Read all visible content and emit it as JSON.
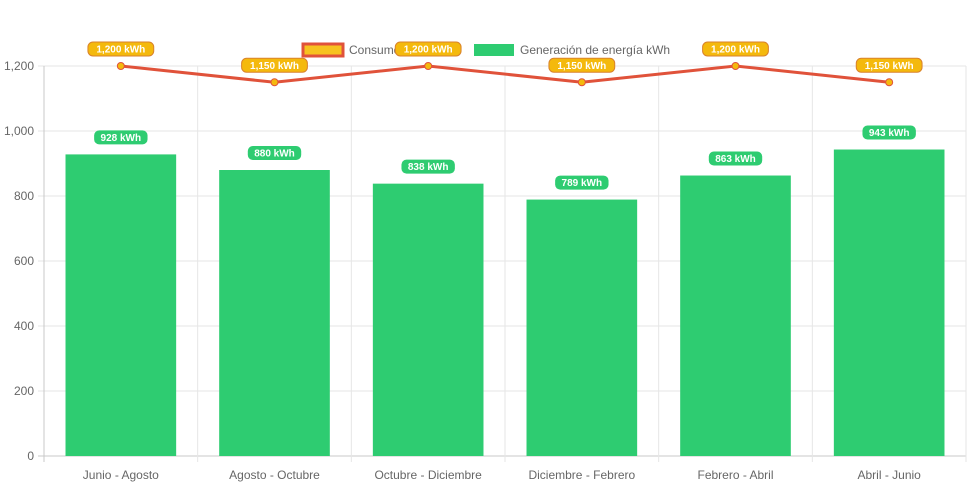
{
  "chart_data": {
    "type": "bar",
    "categories": [
      "Junio - Agosto",
      "Agosto - Octubre",
      "Octubre - Diciembre",
      "Diciembre - Febrero",
      "Febrero - Abril",
      "Abril - Junio"
    ],
    "series": [
      {
        "name": "Consumo kWh",
        "type": "line",
        "values": [
          1200,
          1150,
          1200,
          1150,
          1200,
          1150
        ],
        "labels": [
          "1,200 kWh",
          "1,150 kWh",
          "1,200 kWh",
          "1,150 kWh",
          "1,200 kWh",
          "1,150 kWh"
        ],
        "color": "#e0523a",
        "legend_fill": "#f7c21e",
        "label_bg": "#f4b90d",
        "label_border": "#d9822b"
      },
      {
        "name": "Generación de energía kWh",
        "type": "bar",
        "values": [
          928,
          880,
          838,
          789,
          863,
          943
        ],
        "labels": [
          "928 kWh",
          "880 kWh",
          "838 kWh",
          "789 kWh",
          "863 kWh",
          "943 kWh"
        ],
        "color": "#2ecc71",
        "label_bg": "#2ecc71"
      }
    ],
    "ylim": [
      0,
      1200
    ],
    "yticks": [
      0,
      200,
      400,
      600,
      800,
      1000,
      1200
    ],
    "ytick_labels": [
      "0",
      "200",
      "400",
      "600",
      "800",
      "1,000",
      "1,200"
    ],
    "grid": true,
    "legend_position": "top"
  }
}
